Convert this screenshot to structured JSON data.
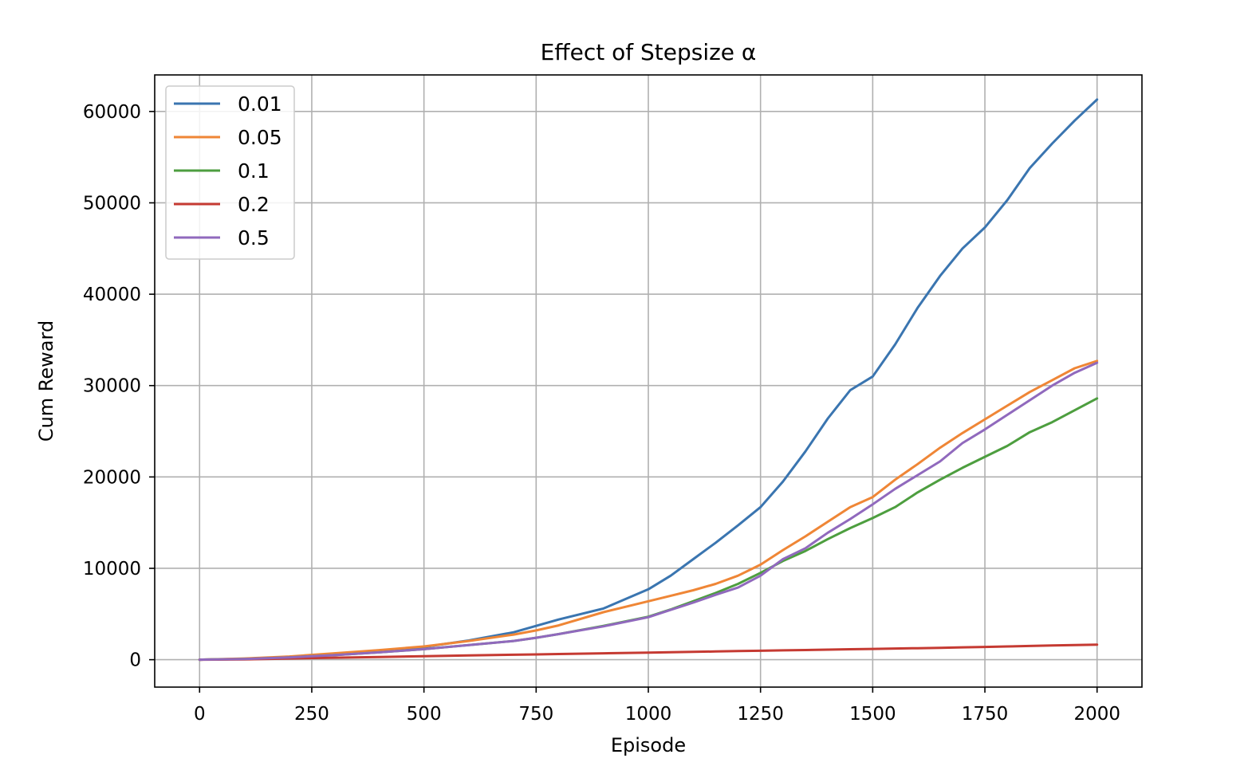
{
  "chart_data": {
    "type": "line",
    "title": "Effect of Stepsize α",
    "xlabel": "Episode",
    "ylabel": "Cum Reward",
    "xlim": [
      -100,
      2100
    ],
    "ylim": [
      -3000,
      64000
    ],
    "xticks": [
      "0",
      "250",
      "500",
      "750",
      "1000",
      "1250",
      "1500",
      "1750",
      "2000"
    ],
    "yticks": [
      "0",
      "10000",
      "20000",
      "30000",
      "40000",
      "50000",
      "60000"
    ],
    "grid": true,
    "legend_position": "top-left",
    "x": [
      0,
      100,
      200,
      300,
      400,
      500,
      600,
      700,
      750,
      800,
      900,
      1000,
      1050,
      1100,
      1150,
      1200,
      1250,
      1300,
      1350,
      1400,
      1450,
      1500,
      1550,
      1600,
      1650,
      1700,
      1750,
      1800,
      1850,
      1900,
      1950,
      2000
    ],
    "series": [
      {
        "name": "0.01",
        "color": "#3a75b0",
        "values": [
          0,
          100,
          300,
          600,
          950,
          1400,
          2100,
          3000,
          3700,
          4400,
          5600,
          7700,
          9200,
          11000,
          12800,
          14700,
          16700,
          19500,
          22800,
          26400,
          29500,
          31000,
          34500,
          38500,
          42000,
          45000,
          47300,
          50300,
          53800,
          56500,
          59000,
          61300
        ]
      },
      {
        "name": "0.05",
        "color": "#ef8636",
        "values": [
          0,
          130,
          350,
          700,
          1050,
          1450,
          2050,
          2750,
          3200,
          3750,
          5200,
          6400,
          7000,
          7600,
          8300,
          9200,
          10400,
          12000,
          13500,
          15100,
          16700,
          17800,
          19700,
          21400,
          23200,
          24800,
          26300,
          27800,
          29300,
          30600,
          31900,
          32700
        ]
      },
      {
        "name": "0.1",
        "color": "#4d9e3f",
        "values": [
          0,
          80,
          250,
          500,
          800,
          1150,
          1600,
          2050,
          2400,
          2800,
          3700,
          4700,
          5500,
          6400,
          7300,
          8300,
          9500,
          10800,
          11900,
          13200,
          14400,
          15500,
          16700,
          18300,
          19700,
          21000,
          22200,
          23400,
          24900,
          26000,
          27300,
          28600
        ]
      },
      {
        "name": "0.2",
        "color": "#c53a32",
        "values": [
          0,
          40,
          130,
          220,
          300,
          380,
          460,
          540,
          580,
          620,
          700,
          780,
          820,
          860,
          900,
          940,
          980,
          1020,
          1060,
          1100,
          1140,
          1180,
          1220,
          1260,
          1300,
          1350,
          1400,
          1450,
          1500,
          1550,
          1600,
          1650
        ]
      },
      {
        "name": "0.5",
        "color": "#9069bd",
        "values": [
          0,
          80,
          250,
          500,
          800,
          1150,
          1600,
          2050,
          2400,
          2800,
          3650,
          4650,
          5450,
          6250,
          7100,
          7900,
          9200,
          11000,
          12200,
          13900,
          15400,
          17000,
          18700,
          20200,
          21700,
          23700,
          25200,
          26800,
          28400,
          30000,
          31400,
          32500
        ]
      }
    ]
  }
}
